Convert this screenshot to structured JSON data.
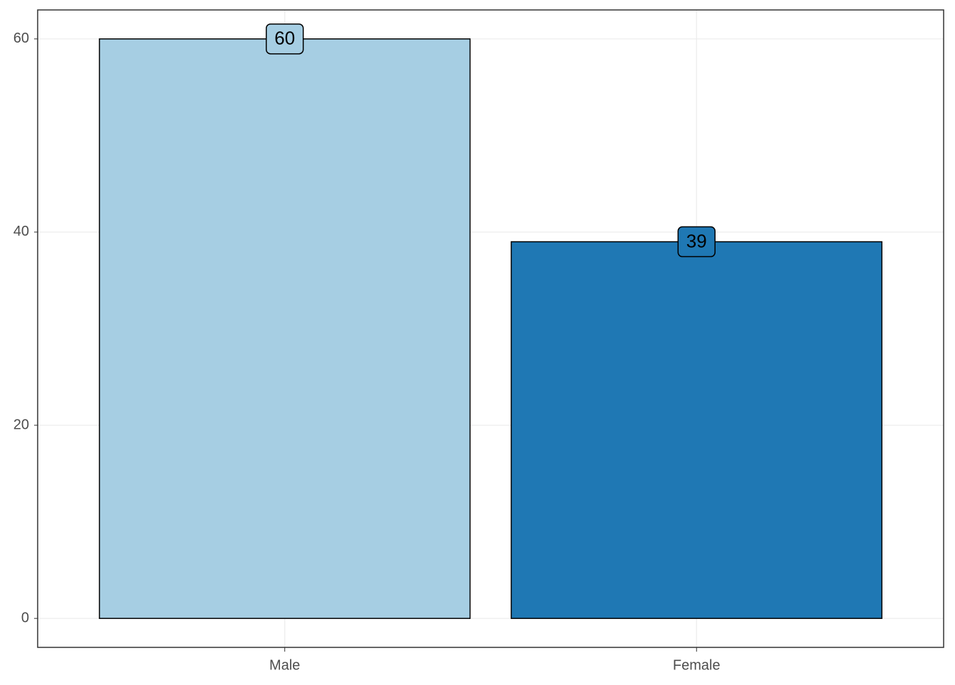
{
  "chart_data": {
    "type": "bar",
    "categories": [
      "Male",
      "Female"
    ],
    "values": [
      60,
      39
    ],
    "colors": [
      "#a6cee3",
      "#1f78b4"
    ],
    "ylim": [
      -3,
      63
    ],
    "yticks": [
      0,
      20,
      40,
      60
    ],
    "grid": true
  }
}
